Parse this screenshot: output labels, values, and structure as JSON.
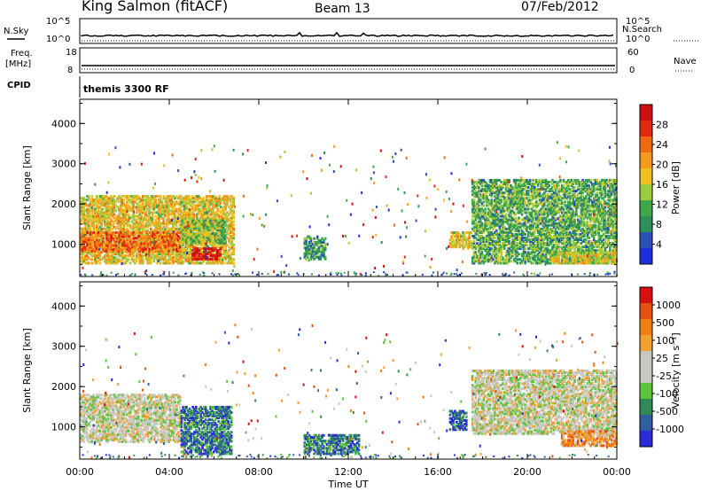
{
  "header": {
    "station": "King Salmon (fitACF)",
    "beam": "Beam 13",
    "date": "07/Feb/2012"
  },
  "summary_panels": {
    "nsky_label": "N.Sky",
    "nsearch_label": "N.Search",
    "freq_label_line1": "Freq.",
    "freq_label_line2": "[MHz]",
    "nave_label": "Nave",
    "cpid_label": "CPID",
    "cpid_value": "themis 3300 RF",
    "noise_left_ticks": [
      "10^5",
      "10^0"
    ],
    "noise_right_ticks": [
      "10^5",
      "10^0"
    ],
    "freq_ticks": [
      "18",
      "8"
    ],
    "nave_ticks": [
      "60",
      "0"
    ]
  },
  "colors": {
    "power_scale": [
      "#1f2de0",
      "#2b4fb8",
      "#2f8f5a",
      "#3fa84a",
      "#9ccb3c",
      "#f0c020",
      "#f59a1c",
      "#f06a10",
      "#e02a10",
      "#d01010"
    ],
    "velocity_scale": [
      "#2a2ad8",
      "#2f5fa0",
      "#2e8a56",
      "#5ac43a",
      "#c8c8c0",
      "#c8c8c0",
      "#f0a030",
      "#f08010",
      "#e85010",
      "#d81010"
    ]
  },
  "chart_data": [
    {
      "type": "heatmap",
      "panel": "power",
      "ylabel": "Slant Range [km]",
      "ylim": [
        200,
        4600
      ],
      "yticks": [
        "1000",
        "2000",
        "3000",
        "4000"
      ],
      "xlim_hours": [
        0,
        24
      ],
      "colorbar_label": "Power [dB]",
      "colorbar_ticks": [
        "28",
        "24",
        "20",
        "16",
        "12",
        "8",
        "4"
      ],
      "colorbar_range": [
        0,
        32
      ],
      "regions": [
        {
          "t": [
            0.0,
            6.9
          ],
          "r": [
            500,
            2200
          ],
          "level": 0.55
        },
        {
          "t": [
            0.0,
            4.5
          ],
          "r": [
            800,
            1300
          ],
          "level": 0.75
        },
        {
          "t": [
            5.0,
            6.3
          ],
          "r": [
            600,
            900
          ],
          "level": 0.95
        },
        {
          "t": [
            4.5,
            6.5
          ],
          "r": [
            1000,
            1600
          ],
          "level": 0.4
        },
        {
          "t": [
            10.0,
            11.0
          ],
          "r": [
            600,
            1200
          ],
          "level": 0.3
        },
        {
          "t": [
            16.5,
            17.5
          ],
          "r": [
            900,
            1300
          ],
          "level": 0.55
        },
        {
          "t": [
            17.5,
            24.0
          ],
          "r": [
            500,
            2600
          ],
          "level": 0.35
        },
        {
          "t": [
            21.0,
            24.0
          ],
          "r": [
            500,
            800
          ],
          "level": 0.5
        }
      ]
    },
    {
      "type": "heatmap",
      "panel": "velocity",
      "ylabel": "Slant Range [km]",
      "ylim": [
        200,
        4600
      ],
      "yticks": [
        "1000",
        "2000",
        "3000",
        "4000"
      ],
      "xlim_hours": [
        0,
        24
      ],
      "xlabel": "Time UT",
      "xticks": [
        "00:00",
        "04:00",
        "08:00",
        "12:00",
        "16:00",
        "20:00",
        "00:00"
      ],
      "colorbar_label": "Velocity [m s⁻¹]",
      "colorbar_ticks": [
        "1000",
        "500",
        "100",
        "25",
        "-25",
        "-100",
        "-500",
        "-1000"
      ],
      "regions": [
        {
          "t": [
            0.0,
            4.5
          ],
          "r": [
            600,
            1800
          ],
          "level": 0.5
        },
        {
          "t": [
            4.5,
            6.8
          ],
          "r": [
            300,
            1500
          ],
          "level": 0.2
        },
        {
          "t": [
            10.0,
            12.5
          ],
          "r": [
            300,
            800
          ],
          "level": 0.2
        },
        {
          "t": [
            16.5,
            17.3
          ],
          "r": [
            900,
            1400
          ],
          "level": 0.15
        },
        {
          "t": [
            17.5,
            24.0
          ],
          "r": [
            800,
            2400
          ],
          "level": 0.5
        },
        {
          "t": [
            21.5,
            24.0
          ],
          "r": [
            500,
            900
          ],
          "level": 0.7
        }
      ]
    }
  ]
}
